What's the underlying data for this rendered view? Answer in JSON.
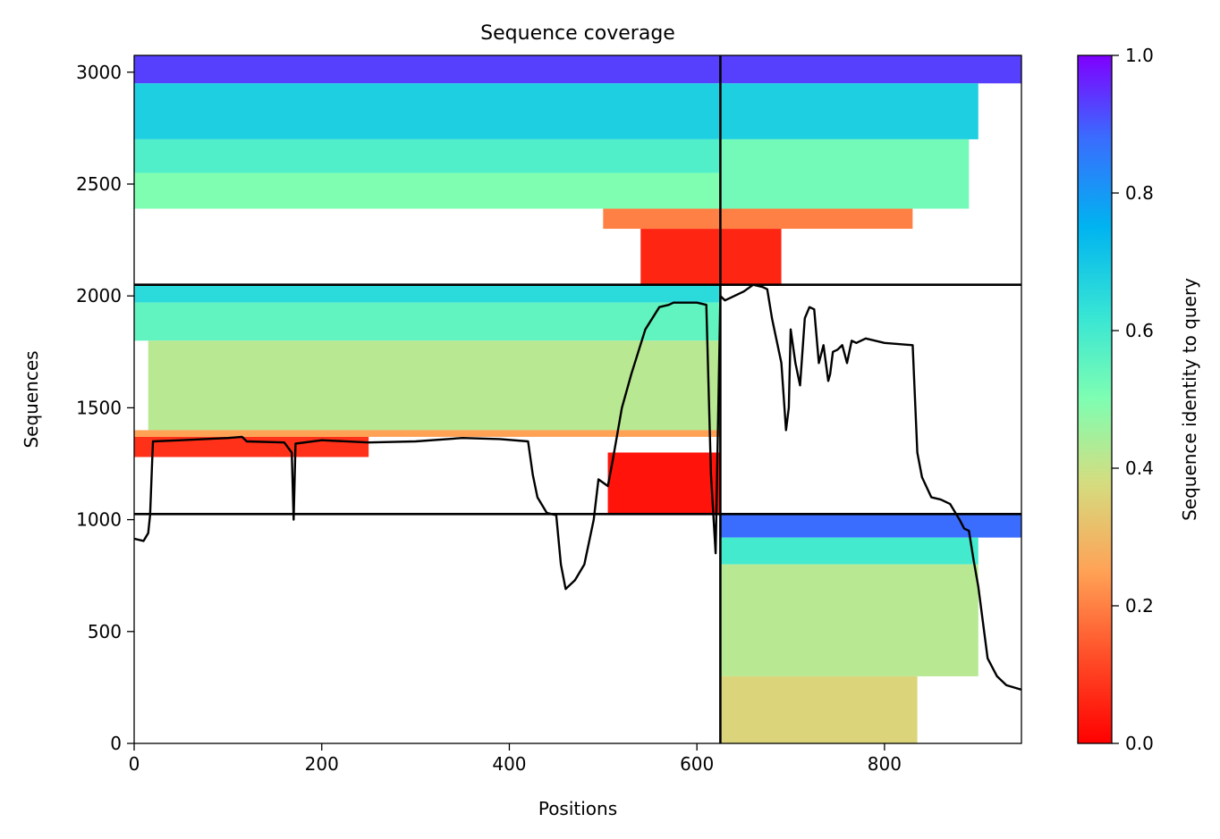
{
  "chart_data": {
    "type": "heatmap",
    "title": "Sequence coverage",
    "xlabel": "Positions",
    "ylabel": "Sequences",
    "xlim": [
      0,
      946
    ],
    "ylim": [
      0,
      3075
    ],
    "xticks": [
      0,
      200,
      400,
      600,
      800
    ],
    "yticks": [
      0,
      500,
      1000,
      1500,
      2000,
      2500,
      3000
    ],
    "colorbar": {
      "label": "Sequence identity to query",
      "range": [
        0,
        1
      ],
      "ticks": [
        "0.0",
        "0.2",
        "0.4",
        "0.6",
        "0.8",
        "1.0"
      ],
      "colormap": "rainbow_r"
    },
    "divider_positions": [
      625
    ],
    "divider_sequences": [
      1025,
      2050
    ],
    "blocks": [
      {
        "name": "block-1",
        "x": [
          0,
          625
        ],
        "y": [
          1025,
          2050
        ],
        "bands": [
          {
            "y": [
              1970,
              2050
            ],
            "x": [
              0,
              625
            ],
            "identity": 0.65
          },
          {
            "y": [
              1800,
              1970
            ],
            "x": [
              0,
              625
            ],
            "identity": 0.55
          },
          {
            "y": [
              1400,
              1800
            ],
            "x": [
              15,
              625
            ],
            "identity": 0.42
          },
          {
            "y": [
              1370,
              1400
            ],
            "x": [
              0,
              625
            ],
            "identity": 0.25
          },
          {
            "y": [
              1280,
              1370
            ],
            "x": [
              0,
              250
            ],
            "identity": 0.08
          },
          {
            "y": [
              1025,
              1300
            ],
            "x": [
              505,
              625
            ],
            "identity": 0.03
          }
        ]
      },
      {
        "name": "block-2",
        "x": [
          0,
          625
        ],
        "y": [
          2050,
          3075
        ],
        "bands": [
          {
            "y": [
              2950,
              3075
            ],
            "x": [
              0,
              625
            ],
            "identity": 0.93
          },
          {
            "y": [
              2700,
              2950
            ],
            "x": [
              0,
              625
            ],
            "identity": 0.68
          },
          {
            "y": [
              2550,
              2700
            ],
            "x": [
              0,
              625
            ],
            "identity": 0.58
          },
          {
            "y": [
              2390,
              2550
            ],
            "x": [
              0,
              625
            ],
            "identity": 0.5
          },
          {
            "y": [
              2300,
              2390
            ],
            "x": [
              500,
              625
            ],
            "identity": 0.2
          },
          {
            "y": [
              2050,
              2300
            ],
            "x": [
              540,
              625
            ],
            "identity": 0.06
          }
        ]
      },
      {
        "name": "block-3",
        "x": [
          625,
          946
        ],
        "y": [
          2050,
          3075
        ],
        "bands": [
          {
            "y": [
              2950,
              3075
            ],
            "x": [
              625,
              946
            ],
            "identity": 0.93
          },
          {
            "y": [
              2700,
              2950
            ],
            "x": [
              625,
              900
            ],
            "identity": 0.68
          },
          {
            "y": [
              2390,
              2700
            ],
            "x": [
              625,
              890
            ],
            "identity": 0.52
          },
          {
            "y": [
              2300,
              2390
            ],
            "x": [
              625,
              830
            ],
            "identity": 0.2
          },
          {
            "y": [
              2050,
              2300
            ],
            "x": [
              625,
              690
            ],
            "identity": 0.06
          }
        ]
      },
      {
        "name": "block-4",
        "x": [
          625,
          946
        ],
        "y": [
          0,
          1025
        ],
        "bands": [
          {
            "y": [
              920,
              1025
            ],
            "x": [
              625,
              946
            ],
            "identity": 0.88
          },
          {
            "y": [
              800,
              920
            ],
            "x": [
              625,
              900
            ],
            "identity": 0.6
          },
          {
            "y": [
              300,
              800
            ],
            "x": [
              625,
              900
            ],
            "identity": 0.42
          },
          {
            "y": [
              0,
              300
            ],
            "x": [
              625,
              835
            ],
            "identity": 0.36
          }
        ]
      }
    ],
    "coverage_line": {
      "x": [
        0,
        10,
        15,
        17,
        20,
        50,
        100,
        115,
        120,
        160,
        168,
        170,
        172,
        200,
        250,
        300,
        350,
        390,
        420,
        425,
        430,
        440,
        450,
        455,
        460,
        470,
        480,
        490,
        495,
        505,
        510,
        520,
        530,
        545,
        560,
        570,
        575,
        600,
        610,
        615,
        620,
        625,
        630,
        650,
        660,
        670,
        675,
        680,
        690,
        695,
        698,
        700,
        705,
        710,
        715,
        720,
        725,
        730,
        735,
        740,
        742,
        745,
        750,
        755,
        760,
        765,
        770,
        780,
        800,
        830,
        835,
        840,
        850,
        860,
        870,
        880,
        885,
        890,
        895,
        900,
        910,
        920,
        930,
        946
      ],
      "y": [
        915,
        905,
        940,
        1020,
        1350,
        1355,
        1365,
        1370,
        1350,
        1345,
        1300,
        1000,
        1340,
        1355,
        1345,
        1350,
        1365,
        1360,
        1350,
        1200,
        1100,
        1030,
        1020,
        800,
        690,
        730,
        800,
        1000,
        1180,
        1150,
        1260,
        1500,
        1650,
        1850,
        1950,
        1960,
        1970,
        1970,
        1960,
        1200,
        850,
        2000,
        1980,
        2020,
        2050,
        2040,
        2030,
        1900,
        1700,
        1400,
        1500,
        1850,
        1700,
        1600,
        1900,
        1950,
        1940,
        1700,
        1780,
        1620,
        1650,
        1750,
        1760,
        1780,
        1700,
        1800,
        1790,
        1810,
        1790,
        1780,
        1300,
        1190,
        1100,
        1090,
        1070,
        1000,
        960,
        950,
        820,
        700,
        380,
        300,
        260,
        240
      ]
    }
  }
}
